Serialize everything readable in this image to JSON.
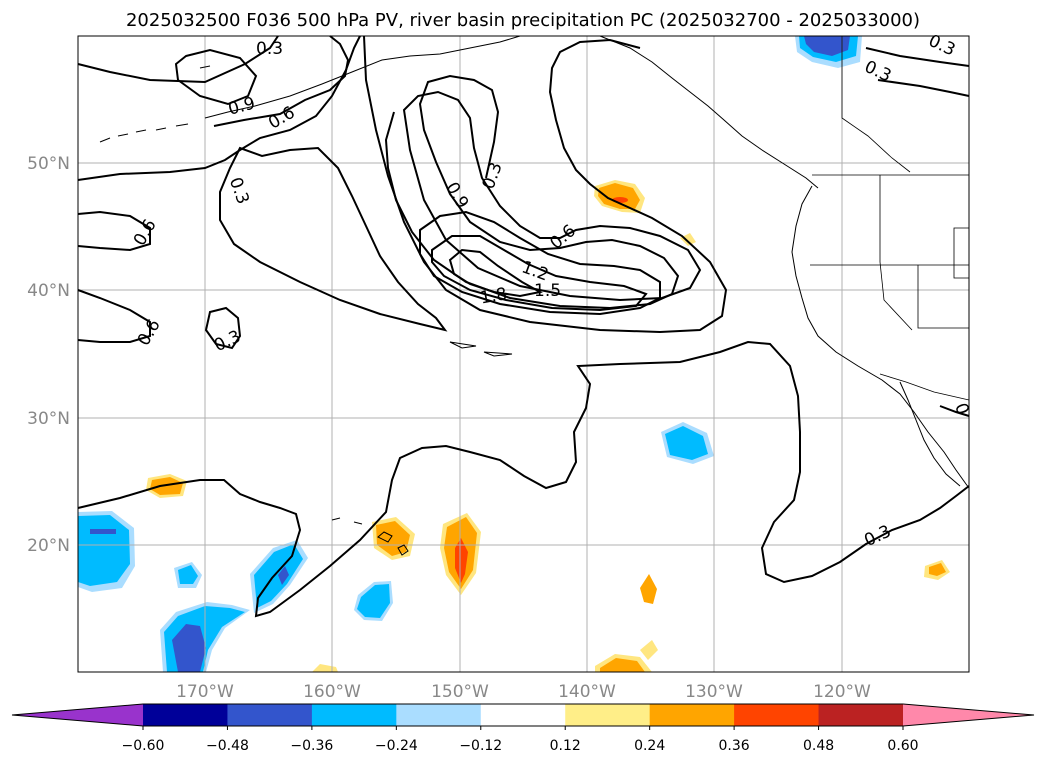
{
  "title": "2025032500 F036 500 hPa PV, river basin precipitation PC (2025032700 - 2025033000)",
  "map": {
    "lat_labels": [
      "50°N",
      "40°N",
      "30°N",
      "20°N"
    ],
    "lon_labels": [
      "170°W",
      "160°W",
      "150°W",
      "140°W",
      "130°W",
      "120°W"
    ],
    "contour_labels": [
      "0.3",
      "0.3",
      "0.3",
      "0.3",
      "0.3",
      "0.3",
      "0.3",
      "0.6",
      "0.6",
      "0.6",
      "0.6",
      "0.9",
      "0.9",
      "1.2",
      "1.5",
      "1.8",
      "0"
    ]
  },
  "colorbar": {
    "colors": [
      "#9933cc",
      "#000099",
      "#3355cc",
      "#00bbff",
      "#aaddff",
      "#ffffff",
      "#ffee88",
      "#ffa500",
      "#ff4400",
      "#bb2222",
      "#ff88aa"
    ],
    "tick_labels": [
      "−0.60",
      "−0.48",
      "−0.36",
      "−0.24",
      "−0.12",
      "0.12",
      "0.24",
      "0.36",
      "0.48",
      "0.60"
    ]
  }
}
